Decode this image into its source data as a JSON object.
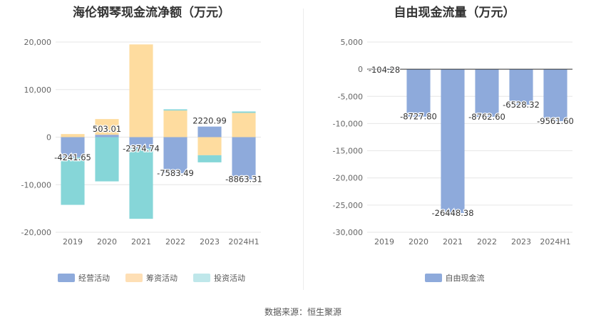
{
  "source": "数据来源：恒生聚源",
  "chart_data": [
    {
      "type": "bar",
      "stacked": true,
      "title": "海伦钢琴现金流净额（万元）",
      "categories": [
        "2019",
        "2020",
        "2021",
        "2022",
        "2023",
        "2024H1"
      ],
      "ylim": [
        -20000,
        20000
      ],
      "yticks": [
        20000,
        10000,
        0,
        -10000,
        -20000
      ],
      "ytick_labels": [
        "20,000",
        "10,000",
        "0",
        "-10,000",
        "-20,000"
      ],
      "grid": true,
      "legend_position": "bottom",
      "series": [
        {
          "name": "经营活动",
          "color": "#8eaadb",
          "values": [
            -4241.65,
            503.01,
            -2374.74,
            -7583.49,
            2220.99,
            -8863.31
          ]
        },
        {
          "name": "筹资活动",
          "color": "#fedc9f",
          "values": [
            650,
            3300,
            19500,
            5600,
            -3800,
            5100
          ]
        },
        {
          "name": "投资活动",
          "color": "#86d6d8",
          "values": [
            -10000,
            -9300,
            -14800,
            250,
            -1500,
            300
          ]
        }
      ],
      "data_labels": [
        "-4241.65",
        "503.01",
        "-2374.74",
        "-7583.49",
        "2220.99",
        "-8863.31"
      ],
      "legend_colors": [
        "#8eaadb",
        "#fedfb5",
        "#bfe7ea"
      ]
    },
    {
      "type": "bar",
      "title": "自由现金流量（万元）",
      "categories": [
        "2019",
        "2020",
        "2021",
        "2022",
        "2023",
        "2024H1"
      ],
      "ylim": [
        -30000,
        5000
      ],
      "yticks": [
        5000,
        0,
        -5000,
        -10000,
        -15000,
        -20000,
        -25000,
        -30000
      ],
      "ytick_labels": [
        "5,000",
        "0",
        "-5,000",
        "-10,000",
        "-15,000",
        "-20,000",
        "-25,000",
        "-30,000"
      ],
      "grid": true,
      "legend_position": "bottom",
      "series": [
        {
          "name": "自由现金流",
          "color": "#8eaadb",
          "values": [
            -104.28,
            -8727.8,
            -26448.38,
            -8762.6,
            -6528.32,
            -9561.6
          ]
        }
      ],
      "data_labels": [
        "-104.28",
        "-8727.80",
        "-26448.38",
        "-8762.60",
        "-6528.32",
        "-9561.60"
      ]
    }
  ]
}
